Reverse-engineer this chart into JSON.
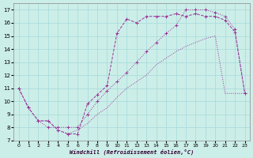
{
  "xlabel": "Windchill (Refroidissement éolien,°C)",
  "background_color": "#cceee8",
  "grid_color": "#aadddd",
  "line_color": "#993399",
  "xlim": [
    -0.5,
    23.5
  ],
  "ylim": [
    7,
    17.5
  ],
  "xtick_labels": [
    "0",
    "1",
    "2",
    "3",
    "4",
    "5",
    "6",
    "7",
    "8",
    "9",
    "10",
    "11",
    "12",
    "13",
    "14",
    "15",
    "16",
    "17",
    "18",
    "19",
    "20",
    "21",
    "22",
    "23"
  ],
  "xtick_vals": [
    0,
    1,
    2,
    3,
    4,
    5,
    6,
    7,
    8,
    9,
    10,
    11,
    12,
    13,
    14,
    15,
    16,
    17,
    18,
    19,
    20,
    21,
    22,
    23
  ],
  "ytick_vals": [
    7,
    8,
    9,
    10,
    11,
    12,
    13,
    14,
    15,
    16,
    17
  ],
  "curve1_x": [
    0,
    1,
    2,
    3,
    4,
    5,
    6,
    7,
    8,
    9,
    10,
    11,
    12,
    13,
    14,
    15,
    16,
    17,
    18,
    19,
    20,
    21,
    22,
    23
  ],
  "curve1_y": [
    11.0,
    9.5,
    8.5,
    8.5,
    7.8,
    7.5,
    7.8,
    8.3,
    9.0,
    9.5,
    10.3,
    11.0,
    11.5,
    12.0,
    12.8,
    13.3,
    13.8,
    14.2,
    14.5,
    14.8,
    15.0,
    10.6,
    10.6,
    10.6
  ],
  "curve2_x": [
    0,
    1,
    2,
    3,
    4,
    5,
    6,
    7,
    8,
    9,
    10,
    11,
    12,
    13,
    14,
    15,
    16,
    17,
    18,
    19,
    20,
    21,
    22,
    23
  ],
  "curve2_y": [
    11.0,
    9.5,
    8.5,
    8.5,
    7.8,
    7.5,
    7.5,
    9.8,
    10.5,
    11.2,
    15.2,
    16.3,
    16.0,
    16.5,
    16.5,
    16.5,
    16.7,
    16.5,
    16.7,
    16.5,
    16.5,
    16.2,
    15.3,
    10.6
  ],
  "curve3_x": [
    0,
    1,
    2,
    3,
    4,
    5,
    6,
    7,
    8,
    9,
    10,
    11,
    12,
    13,
    14,
    15,
    16,
    17,
    18,
    19,
    20,
    21,
    22,
    23
  ],
  "curve3_y": [
    11.0,
    9.5,
    8.5,
    8.0,
    8.0,
    8.0,
    8.0,
    9.0,
    10.0,
    10.8,
    11.5,
    12.2,
    13.0,
    13.8,
    14.5,
    15.2,
    15.8,
    17.0,
    17.0,
    17.0,
    16.8,
    16.5,
    15.5,
    10.6
  ]
}
